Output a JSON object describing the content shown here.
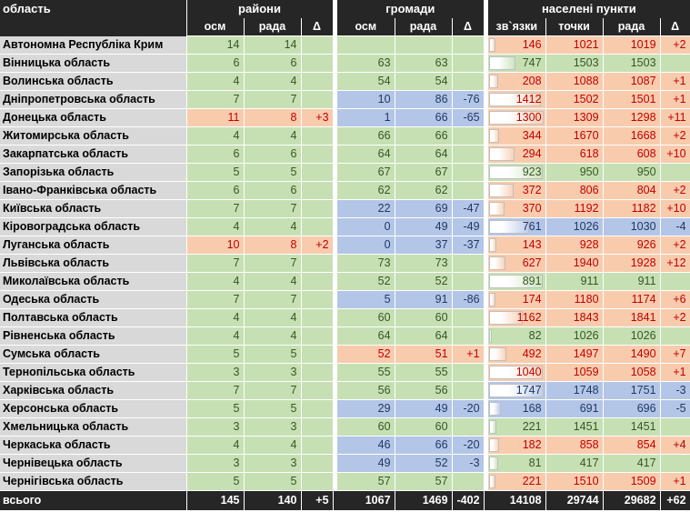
{
  "header": {
    "corner": "область",
    "groups": {
      "districts": "райони",
      "communities": "громади",
      "settlements": "населені пункти"
    },
    "cols": {
      "osm": "осм",
      "rada": "рада",
      "delta": "Δ",
      "links": "зв`язки",
      "points": "точки"
    }
  },
  "chart_data": {
    "type": "table",
    "columns": [
      "область",
      "райони осм",
      "райони рада",
      "райони Δ",
      "громади осм",
      "громади рада",
      "громади Δ",
      "населені пункти зв`язки",
      "населені пункти точки",
      "населені пункти рада",
      "населені пункти Δ"
    ],
    "rows": [
      [
        "Автономна Республіка Крим",
        "14",
        "14",
        "",
        "",
        "",
        "",
        "146",
        "1021",
        "1019",
        "+2"
      ],
      [
        "Вінницька область",
        "6",
        "6",
        "",
        "63",
        "63",
        "",
        "747",
        "1503",
        "1503",
        ""
      ],
      [
        "Волинська область",
        "4",
        "4",
        "",
        "54",
        "54",
        "",
        "208",
        "1088",
        "1087",
        "+1"
      ],
      [
        "Дніпропетровська область",
        "7",
        "7",
        "",
        "10",
        "86",
        "-76",
        "1412",
        "1502",
        "1501",
        "+1"
      ],
      [
        "Донецька область",
        "11",
        "8",
        "+3",
        "1",
        "66",
        "-65",
        "1300",
        "1309",
        "1298",
        "+11"
      ],
      [
        "Житомирська область",
        "4",
        "4",
        "",
        "66",
        "66",
        "",
        "344",
        "1670",
        "1668",
        "+2"
      ],
      [
        "Закарпатська область",
        "6",
        "6",
        "",
        "64",
        "64",
        "",
        "294",
        "618",
        "608",
        "+10"
      ],
      [
        "Запорізька область",
        "5",
        "5",
        "",
        "67",
        "67",
        "",
        "923",
        "950",
        "950",
        ""
      ],
      [
        "Івано-Франківська область",
        "6",
        "6",
        "",
        "62",
        "62",
        "",
        "372",
        "806",
        "804",
        "+2"
      ],
      [
        "Київська область",
        "7",
        "7",
        "",
        "22",
        "69",
        "-47",
        "370",
        "1192",
        "1182",
        "+10"
      ],
      [
        "Кіровоградська область",
        "4",
        "4",
        "",
        "0",
        "49",
        "-49",
        "761",
        "1026",
        "1030",
        "-4"
      ],
      [
        "Луганська область",
        "10",
        "8",
        "+2",
        "0",
        "37",
        "-37",
        "143",
        "928",
        "926",
        "+2"
      ],
      [
        "Львівська область",
        "7",
        "7",
        "",
        "73",
        "73",
        "",
        "627",
        "1940",
        "1928",
        "+12"
      ],
      [
        "Миколаївська область",
        "4",
        "4",
        "",
        "52",
        "52",
        "",
        "891",
        "911",
        "911",
        ""
      ],
      [
        "Одеська область",
        "7",
        "7",
        "",
        "5",
        "91",
        "-86",
        "174",
        "1180",
        "1174",
        "+6"
      ],
      [
        "Полтавська область",
        "4",
        "4",
        "",
        "60",
        "60",
        "",
        "1162",
        "1843",
        "1841",
        "+2"
      ],
      [
        "Рівненська область",
        "4",
        "4",
        "",
        "64",
        "64",
        "",
        "82",
        "1026",
        "1026",
        ""
      ],
      [
        "Сумська область",
        "5",
        "5",
        "",
        "52",
        "51",
        "+1",
        "492",
        "1497",
        "1490",
        "+7"
      ],
      [
        "Тернопільська область",
        "3",
        "3",
        "",
        "55",
        "55",
        "",
        "1040",
        "1059",
        "1058",
        "+1"
      ],
      [
        "Харківська область",
        "7",
        "7",
        "",
        "56",
        "56",
        "",
        "1747",
        "1748",
        "1751",
        "-3"
      ],
      [
        "Херсонська область",
        "5",
        "5",
        "",
        "29",
        "49",
        "-20",
        "168",
        "691",
        "696",
        "-5"
      ],
      [
        "Хмельницька область",
        "3",
        "3",
        "",
        "60",
        "60",
        "",
        "221",
        "1451",
        "1451",
        ""
      ],
      [
        "Черкаська область",
        "4",
        "4",
        "",
        "46",
        "66",
        "-20",
        "182",
        "858",
        "854",
        "+4"
      ],
      [
        "Чернівецька область",
        "3",
        "3",
        "",
        "49",
        "52",
        "-3",
        "81",
        "417",
        "417",
        ""
      ],
      [
        "Чернігівська область",
        "5",
        "5",
        "",
        "57",
        "57",
        "",
        "221",
        "1510",
        "1509",
        "+1"
      ]
    ],
    "total": [
      "всього",
      "145",
      "140",
      "+5",
      "1067",
      "1469",
      "-402",
      "14108",
      "29744",
      "29682",
      "+62"
    ]
  },
  "colors": {
    "match": "#c6e0b4",
    "over": "#f8cbad",
    "under": "#b4c6e7",
    "header": "#262626",
    "name_bg": "#d9d9d9"
  }
}
